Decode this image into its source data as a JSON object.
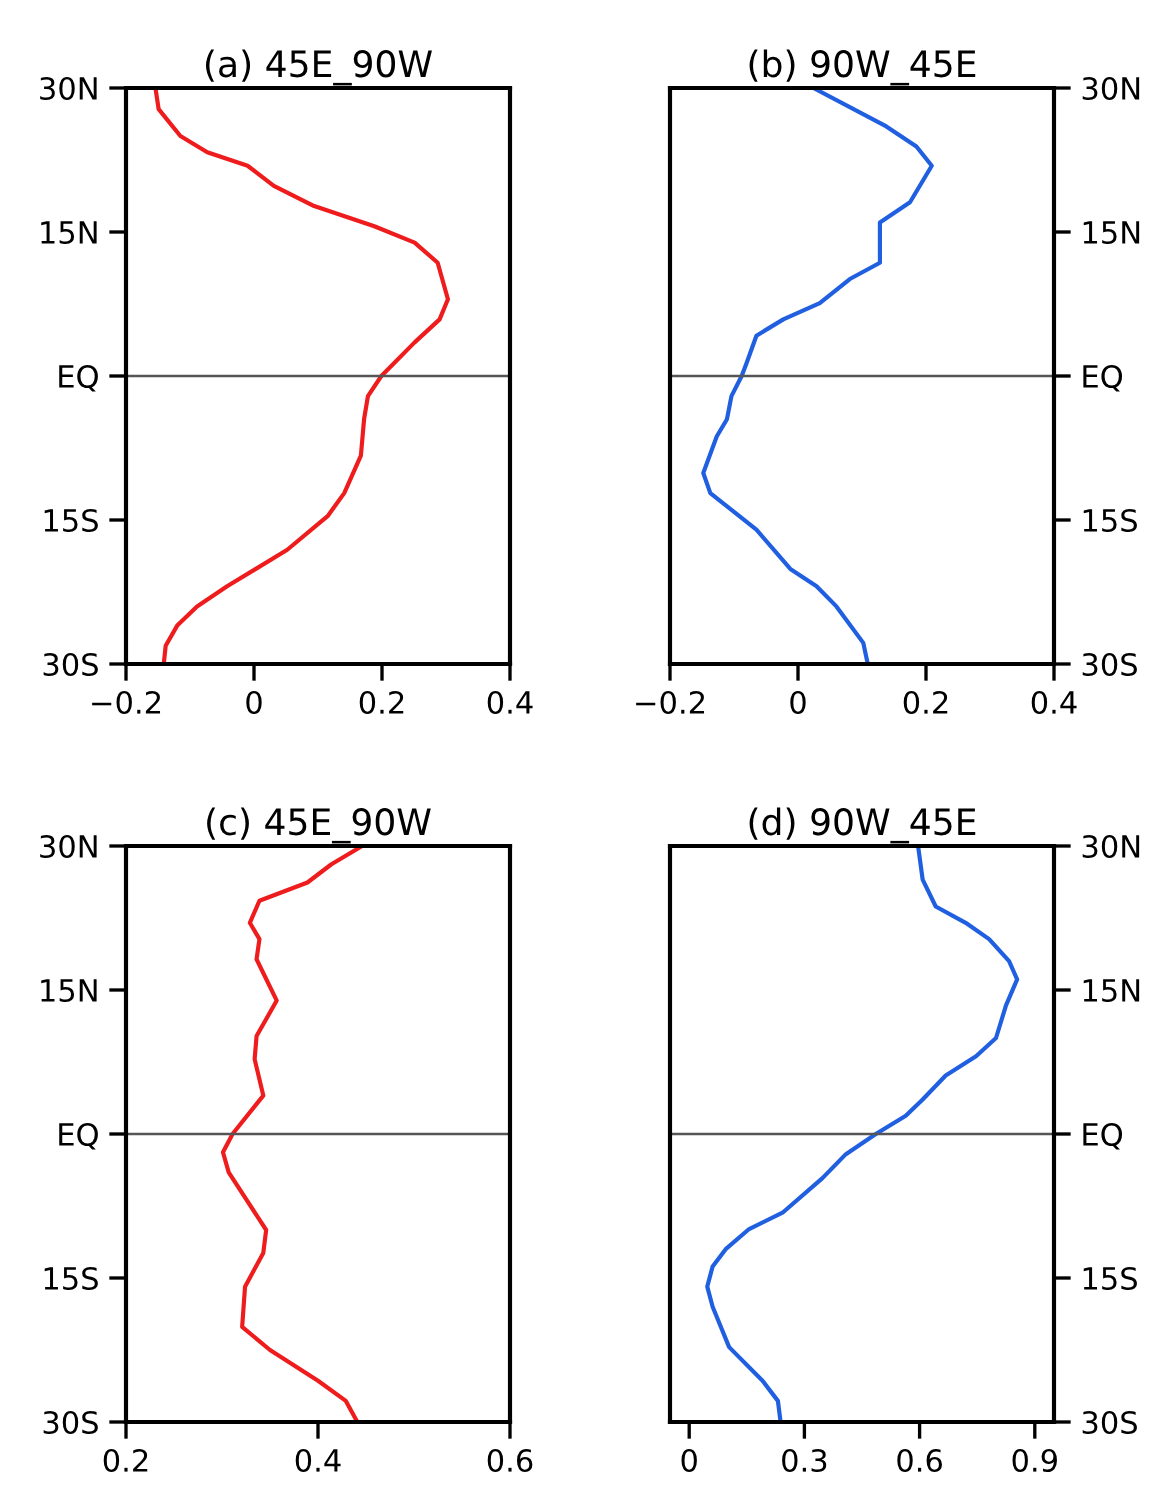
{
  "chart_data": [
    {
      "type": "line",
      "title": "(a) 45E_90W",
      "xlim": [
        -0.2,
        0.4
      ],
      "xticks": [
        -0.2,
        0,
        0.2,
        0.4
      ],
      "ylim": [
        -30,
        30
      ],
      "yticks": [
        {
          "value": -30,
          "label": "30S"
        },
        {
          "value": -15,
          "label": "15S"
        },
        {
          "value": 0,
          "label": "EQ"
        },
        {
          "value": 15,
          "label": "15N"
        },
        {
          "value": 30,
          "label": "30N"
        }
      ],
      "grid": false,
      "legend": false,
      "ref_lines": [
        {
          "axis": "y",
          "value": 0,
          "color": "#555555"
        }
      ],
      "series": [
        {
          "color": "#ee1c1c",
          "x": [
            -0.154,
            -0.149,
            -0.115,
            -0.073,
            -0.01,
            0.031,
            0.094,
            0.188,
            0.251,
            0.287,
            0.303,
            0.29,
            0.251,
            0.199,
            0.178,
            0.172,
            0.167,
            0.141,
            0.115,
            0.052,
            -0.042,
            -0.089,
            -0.12,
            -0.138,
            -0.141
          ],
          "values": [
            30,
            27.8,
            25,
            23.3,
            21.9,
            19.8,
            17.7,
            15.6,
            13.9,
            11.8,
            8.0,
            5.9,
            3.5,
            0,
            -2.1,
            -4.5,
            -8.3,
            -12.2,
            -14.6,
            -18.1,
            -21.9,
            -24.0,
            -26.0,
            -28.1,
            -30
          ]
        }
      ]
    },
    {
      "type": "line",
      "title": "(b) 90W_45E",
      "xlim": [
        -0.2,
        0.4
      ],
      "xticks": [
        -0.2,
        0,
        0.2,
        0.4
      ],
      "ylim": [
        -30,
        30
      ],
      "yticks": [
        {
          "value": -30,
          "label": "30S"
        },
        {
          "value": -15,
          "label": "15S"
        },
        {
          "value": 0,
          "label": "EQ"
        },
        {
          "value": 15,
          "label": "15N"
        },
        {
          "value": 30,
          "label": "30N"
        }
      ],
      "grid": false,
      "legend": false,
      "ref_lines": [
        {
          "axis": "y",
          "value": 0,
          "color": "#555555"
        }
      ],
      "series": [
        {
          "color": "#1f5fe0",
          "x": [
            0.024,
            0.138,
            0.185,
            0.209,
            0.175,
            0.128,
            0.128,
            0.081,
            0.034,
            -0.023,
            -0.065,
            -0.08,
            -0.088,
            -0.104,
            -0.111,
            -0.127,
            -0.148,
            -0.137,
            -0.065,
            -0.012,
            0.029,
            0.06,
            0.102,
            0.109
          ],
          "values": [
            30,
            26.0,
            23.9,
            21.9,
            18.1,
            16.0,
            11.8,
            10.1,
            7.6,
            5.9,
            4.2,
            1.4,
            0,
            -2.1,
            -4.5,
            -6.3,
            -10.1,
            -12.2,
            -16.0,
            -20.1,
            -21.9,
            -24.0,
            -27.8,
            -30
          ]
        }
      ]
    },
    {
      "type": "line",
      "title": "(c) 45E_90W",
      "xlim": [
        0.2,
        0.6
      ],
      "xticks": [
        0.2,
        0.4,
        0.6
      ],
      "ylim": [
        -30,
        30
      ],
      "yticks": [
        {
          "value": -30,
          "label": "30S"
        },
        {
          "value": -15,
          "label": "15S"
        },
        {
          "value": 0,
          "label": "EQ"
        },
        {
          "value": 15,
          "label": "15N"
        },
        {
          "value": 30,
          "label": "30N"
        }
      ],
      "grid": false,
      "legend": false,
      "ref_lines": [
        {
          "axis": "y",
          "value": 0,
          "color": "#555555"
        }
      ],
      "series": [
        {
          "color": "#ee1c1c",
          "x": [
            0.446,
            0.414,
            0.389,
            0.339,
            0.329,
            0.339,
            0.336,
            0.357,
            0.336,
            0.334,
            0.343,
            0.311,
            0.301,
            0.307,
            0.346,
            0.343,
            0.324,
            0.321,
            0.35,
            0.4,
            0.429,
            0.441
          ],
          "values": [
            30,
            28.1,
            26.2,
            24.3,
            22.0,
            20.3,
            18.2,
            13.9,
            10.2,
            7.8,
            4.0,
            0,
            -1.9,
            -4.0,
            -10.0,
            -12.4,
            -15.9,
            -20.1,
            -22.5,
            -25.7,
            -27.8,
            -30
          ]
        }
      ]
    },
    {
      "type": "line",
      "title": "(d) 90W_45E",
      "xlim": [
        -0.05,
        0.95
      ],
      "xticks": [
        0,
        0.3,
        0.6,
        0.9
      ],
      "ylim": [
        -30,
        30
      ],
      "yticks": [
        {
          "value": -30,
          "label": "30S"
        },
        {
          "value": -15,
          "label": "15S"
        },
        {
          "value": 0,
          "label": "EQ"
        },
        {
          "value": 15,
          "label": "15N"
        },
        {
          "value": 30,
          "label": "30N"
        }
      ],
      "grid": false,
      "legend": false,
      "ref_lines": [
        {
          "axis": "y",
          "value": 0,
          "color": "#555555"
        }
      ],
      "series": [
        {
          "color": "#1f5fe0",
          "x": [
            0.596,
            0.608,
            0.642,
            0.72,
            0.781,
            0.833,
            0.854,
            0.825,
            0.799,
            0.747,
            0.668,
            0.608,
            0.564,
            0.486,
            0.408,
            0.347,
            0.243,
            0.156,
            0.095,
            0.061,
            0.047,
            0.061,
            0.104,
            0.191,
            0.231,
            0.238
          ],
          "values": [
            30,
            26.5,
            23.7,
            22.0,
            20.3,
            18.0,
            16.1,
            13.4,
            10.0,
            8.1,
            6.1,
            3.6,
            1.9,
            0,
            -2.1,
            -4.6,
            -8.2,
            -9.9,
            -12.0,
            -13.8,
            -15.9,
            -18.0,
            -22.2,
            -25.7,
            -27.8,
            -30
          ]
        }
      ]
    }
  ]
}
